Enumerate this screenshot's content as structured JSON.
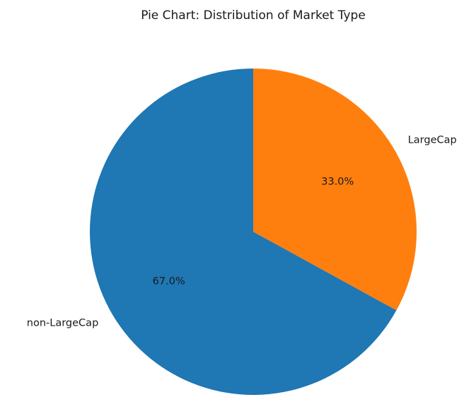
{
  "chart_data": {
    "type": "pie",
    "title": "Pie Chart: Distribution of Market Type",
    "categories": [
      "LargeCap",
      "non-LargeCap"
    ],
    "values": [
      33.0,
      67.0
    ],
    "percent_labels": [
      "33.0%",
      "67.0%"
    ],
    "colors": [
      "#ff7f0e",
      "#1f77b4"
    ],
    "start_angle_deg": 90,
    "direction": "clockwise",
    "legend": "none"
  }
}
